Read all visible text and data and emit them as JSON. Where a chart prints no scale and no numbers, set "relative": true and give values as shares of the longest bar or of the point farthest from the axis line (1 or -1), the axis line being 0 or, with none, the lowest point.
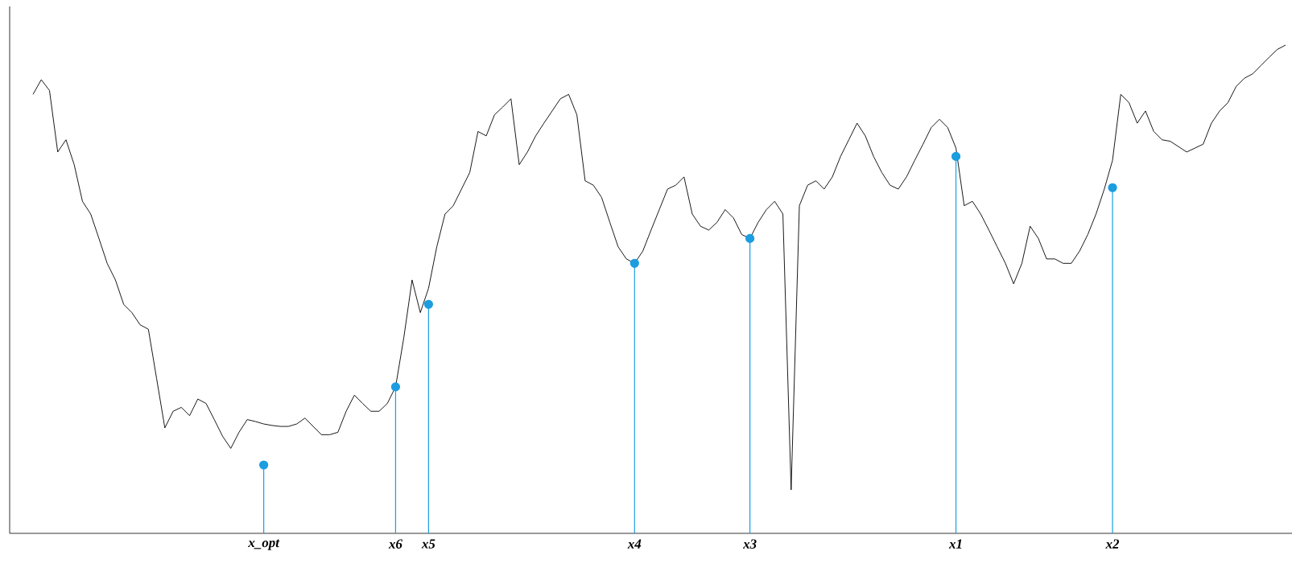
{
  "chart_data": {
    "type": "line",
    "relative": true,
    "categories": [
      null,
      null,
      null,
      null,
      null,
      null,
      null,
      null,
      null,
      null,
      null,
      null,
      null,
      null,
      null,
      null,
      null,
      null,
      null,
      null,
      null,
      null,
      null,
      null,
      null,
      null,
      null,
      null,
      "x_opt",
      null,
      null,
      null,
      null,
      null,
      null,
      null,
      null,
      null,
      null,
      null,
      null,
      null,
      null,
      null,
      "x6",
      null,
      null,
      null,
      "x5",
      null,
      null,
      null,
      null,
      null,
      null,
      null,
      null,
      null,
      null,
      null,
      null,
      null,
      null,
      null,
      null,
      null,
      null,
      null,
      null,
      null,
      null,
      null,
      null,
      "x4",
      null,
      null,
      null,
      null,
      null,
      null,
      null,
      null,
      null,
      null,
      null,
      null,
      null,
      "x3",
      null,
      null,
      null,
      null,
      null,
      null,
      null,
      null,
      null,
      null,
      null,
      null,
      null,
      null,
      null,
      null,
      null,
      null,
      null,
      null,
      null,
      null,
      null,
      null,
      "x1",
      null,
      null,
      null,
      null,
      null,
      null,
      null,
      null,
      null,
      null,
      null,
      null,
      null,
      null,
      null,
      null,
      null,
      null,
      "x2",
      null,
      null,
      null,
      null,
      null,
      null,
      null,
      null,
      null,
      null,
      null,
      null,
      null,
      null,
      null,
      null,
      null,
      null,
      null,
      null,
      null
    ],
    "series": [
      {
        "type": "line",
        "color": "#000000",
        "values": [
          0.899,
          0.929,
          0.907,
          0.781,
          0.806,
          0.755,
          0.68,
          0.654,
          0.604,
          0.553,
          0.519,
          0.469,
          0.452,
          0.427,
          0.418,
          0.317,
          0.216,
          0.25,
          0.258,
          0.241,
          0.275,
          0.266,
          0.233,
          0.199,
          0.174,
          0.207,
          0.233,
          0.229,
          0.224,
          0.221,
          0.219,
          0.219,
          0.224,
          0.236,
          0.219,
          0.202,
          0.202,
          0.207,
          0.25,
          0.283,
          0.266,
          0.25,
          0.25,
          0.266,
          0.3,
          0.401,
          0.519,
          0.452,
          0.502,
          0.587,
          0.654,
          0.671,
          0.705,
          0.739,
          0.823,
          0.814,
          0.857,
          0.873,
          0.89,
          0.755,
          0.781,
          0.814,
          0.84,
          0.865,
          0.89,
          0.899,
          0.857,
          0.722,
          0.713,
          0.688,
          0.637,
          0.587,
          0.562,
          0.553,
          0.578,
          0.621,
          0.663,
          0.705,
          0.713,
          0.73,
          0.654,
          0.629,
          0.621,
          0.637,
          0.663,
          0.646,
          0.612,
          0.604,
          0.637,
          0.663,
          0.68,
          0.654,
          0.089,
          0.671,
          0.713,
          0.722,
          0.705,
          0.73,
          0.772,
          0.806,
          0.84,
          0.814,
          0.772,
          0.739,
          0.713,
          0.705,
          0.73,
          0.764,
          0.797,
          0.831,
          0.848,
          0.831,
          0.789,
          0.671,
          0.68,
          0.654,
          0.621,
          0.587,
          0.553,
          0.511,
          0.553,
          0.629,
          0.604,
          0.562,
          0.562,
          0.553,
          0.553,
          0.578,
          0.612,
          0.654,
          0.705,
          0.764,
          0.899,
          0.882,
          0.84,
          0.865,
          0.823,
          0.806,
          0.803,
          0.792,
          0.781,
          0.789,
          0.797,
          0.84,
          0.865,
          0.882,
          0.915,
          0.932,
          0.941,
          0.958,
          0.975,
          0.991,
          1.0
        ]
      },
      {
        "type": "lollipop",
        "color": "#1b9de0",
        "values": [
          null,
          null,
          null,
          null,
          null,
          null,
          null,
          null,
          null,
          null,
          null,
          null,
          null,
          null,
          null,
          null,
          null,
          null,
          null,
          null,
          null,
          null,
          null,
          null,
          null,
          null,
          null,
          null,
          0.14,
          null,
          null,
          null,
          null,
          null,
          null,
          null,
          null,
          null,
          null,
          null,
          null,
          null,
          null,
          null,
          0.3,
          null,
          null,
          null,
          0.469,
          null,
          null,
          null,
          null,
          null,
          null,
          null,
          null,
          null,
          null,
          null,
          null,
          null,
          null,
          null,
          null,
          null,
          null,
          null,
          null,
          null,
          null,
          null,
          null,
          0.553,
          null,
          null,
          null,
          null,
          null,
          null,
          null,
          null,
          null,
          null,
          null,
          null,
          null,
          0.604,
          null,
          null,
          null,
          null,
          null,
          null,
          null,
          null,
          null,
          null,
          null,
          null,
          null,
          null,
          null,
          null,
          null,
          null,
          null,
          null,
          null,
          null,
          null,
          null,
          0.772,
          null,
          null,
          null,
          null,
          null,
          null,
          null,
          null,
          null,
          null,
          null,
          null,
          null,
          null,
          null,
          null,
          null,
          null,
          0.708,
          null,
          null,
          null,
          null,
          null,
          null,
          null,
          null,
          null,
          null,
          null,
          null,
          null,
          null,
          null,
          null,
          null,
          null,
          null,
          null,
          null
        ]
      }
    ]
  }
}
